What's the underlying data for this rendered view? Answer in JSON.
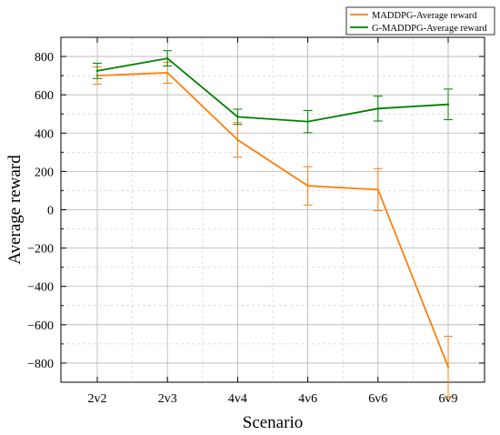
{
  "chart_data": {
    "type": "line",
    "title": "",
    "xlabel": "Scenario",
    "ylabel": "Average reward",
    "categories": [
      "2v2",
      "2v3",
      "4v4",
      "4v6",
      "6v6",
      "6v9"
    ],
    "ylim": [
      -900,
      900
    ],
    "yticks": [
      -800,
      -600,
      -400,
      -200,
      0,
      200,
      400,
      600,
      800
    ],
    "ytick_labels": [
      "−800",
      "−600",
      "−400",
      "−200",
      "0",
      "200",
      "400",
      "600",
      "800"
    ],
    "grid": true,
    "legend_position": "top-right",
    "series": [
      {
        "name": "MADDPG-Average reward",
        "color": "#ff7f0e",
        "values": [
          700,
          715,
          365,
          125,
          105,
          -820
        ],
        "error": [
          45,
          55,
          90,
          100,
          110,
          160
        ]
      },
      {
        "name": "G-MADDPG-Average reward",
        "color": "#008000",
        "values": [
          725,
          790,
          485,
          460,
          528,
          550
        ],
        "error": [
          40,
          40,
          40,
          58,
          65,
          80
        ]
      }
    ]
  }
}
